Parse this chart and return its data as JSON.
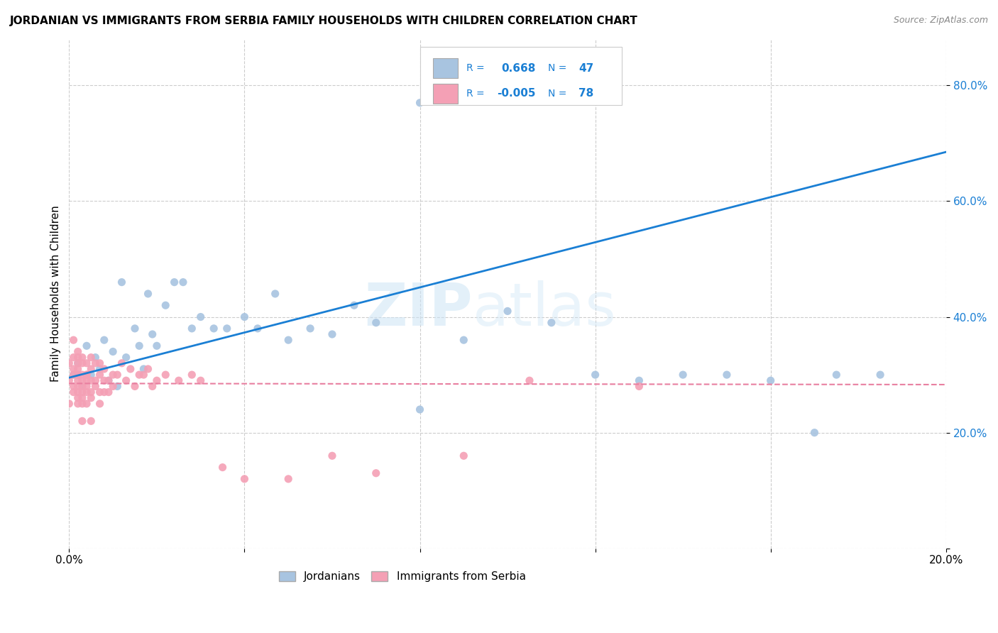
{
  "title": "JORDANIAN VS IMMIGRANTS FROM SERBIA FAMILY HOUSEHOLDS WITH CHILDREN CORRELATION CHART",
  "source": "Source: ZipAtlas.com",
  "ylabel": "Family Households with Children",
  "xlim": [
    0.0,
    0.2
  ],
  "ylim": [
    0.0,
    0.88
  ],
  "yticks": [
    0.0,
    0.2,
    0.4,
    0.6,
    0.8
  ],
  "ytick_labels": [
    "",
    "20.0%",
    "40.0%",
    "60.0%",
    "80.0%"
  ],
  "xticks": [
    0.0,
    0.04,
    0.08,
    0.12,
    0.16,
    0.2
  ],
  "xtick_labels": [
    "0.0%",
    "",
    "",
    "",
    "",
    "20.0%"
  ],
  "color_jordanian": "#a8c4e0",
  "color_serbia": "#f4a0b5",
  "color_jordan_line": "#1a7fd4",
  "color_serbia_line": "#e87fa0",
  "watermark_zip": "ZIP",
  "watermark_atlas": "atlas",
  "jordan_line_x": [
    0.0,
    0.2
  ],
  "jordan_line_y": [
    0.295,
    0.685
  ],
  "serbia_line_x": [
    0.0,
    0.2
  ],
  "serbia_line_y": [
    0.285,
    0.283
  ],
  "jordanian_x": [
    0.001,
    0.002,
    0.003,
    0.004,
    0.005,
    0.006,
    0.007,
    0.008,
    0.009,
    0.01,
    0.011,
    0.012,
    0.013,
    0.015,
    0.016,
    0.017,
    0.018,
    0.019,
    0.02,
    0.022,
    0.024,
    0.026,
    0.028,
    0.03,
    0.033,
    0.036,
    0.04,
    0.043,
    0.047,
    0.05,
    0.055,
    0.06,
    0.065,
    0.07,
    0.08,
    0.09,
    0.1,
    0.11,
    0.12,
    0.13,
    0.14,
    0.15,
    0.16,
    0.17,
    0.08,
    0.175,
    0.185
  ],
  "jordanian_y": [
    0.3,
    0.32,
    0.28,
    0.35,
    0.3,
    0.33,
    0.31,
    0.36,
    0.29,
    0.34,
    0.28,
    0.46,
    0.33,
    0.38,
    0.35,
    0.31,
    0.44,
    0.37,
    0.35,
    0.42,
    0.46,
    0.46,
    0.38,
    0.4,
    0.38,
    0.38,
    0.4,
    0.38,
    0.44,
    0.36,
    0.38,
    0.37,
    0.42,
    0.39,
    0.24,
    0.36,
    0.41,
    0.39,
    0.3,
    0.29,
    0.3,
    0.3,
    0.29,
    0.2,
    0.77,
    0.3,
    0.3
  ],
  "serbia_x": [
    0.0,
    0.0,
    0.0,
    0.001,
    0.001,
    0.001,
    0.001,
    0.001,
    0.001,
    0.002,
    0.002,
    0.002,
    0.002,
    0.002,
    0.002,
    0.002,
    0.002,
    0.002,
    0.002,
    0.002,
    0.003,
    0.003,
    0.003,
    0.003,
    0.003,
    0.003,
    0.003,
    0.003,
    0.003,
    0.004,
    0.004,
    0.004,
    0.004,
    0.004,
    0.004,
    0.004,
    0.005,
    0.005,
    0.005,
    0.005,
    0.005,
    0.005,
    0.006,
    0.006,
    0.006,
    0.007,
    0.007,
    0.007,
    0.007,
    0.008,
    0.008,
    0.008,
    0.009,
    0.009,
    0.01,
    0.01,
    0.011,
    0.012,
    0.013,
    0.014,
    0.015,
    0.016,
    0.017,
    0.018,
    0.019,
    0.02,
    0.022,
    0.025,
    0.028,
    0.03,
    0.035,
    0.04,
    0.05,
    0.06,
    0.07,
    0.09,
    0.105,
    0.13
  ],
  "serbia_y": [
    0.29,
    0.32,
    0.25,
    0.31,
    0.36,
    0.28,
    0.33,
    0.3,
    0.27,
    0.26,
    0.3,
    0.32,
    0.28,
    0.34,
    0.25,
    0.31,
    0.33,
    0.27,
    0.29,
    0.3,
    0.26,
    0.29,
    0.32,
    0.28,
    0.3,
    0.25,
    0.27,
    0.33,
    0.22,
    0.29,
    0.27,
    0.3,
    0.25,
    0.32,
    0.28,
    0.3,
    0.26,
    0.29,
    0.31,
    0.27,
    0.33,
    0.22,
    0.29,
    0.32,
    0.28,
    0.3,
    0.27,
    0.25,
    0.32,
    0.29,
    0.27,
    0.31,
    0.29,
    0.27,
    0.3,
    0.28,
    0.3,
    0.32,
    0.29,
    0.31,
    0.28,
    0.3,
    0.3,
    0.31,
    0.28,
    0.29,
    0.3,
    0.29,
    0.3,
    0.29,
    0.14,
    0.12,
    0.12,
    0.16,
    0.13,
    0.16,
    0.29,
    0.28
  ]
}
